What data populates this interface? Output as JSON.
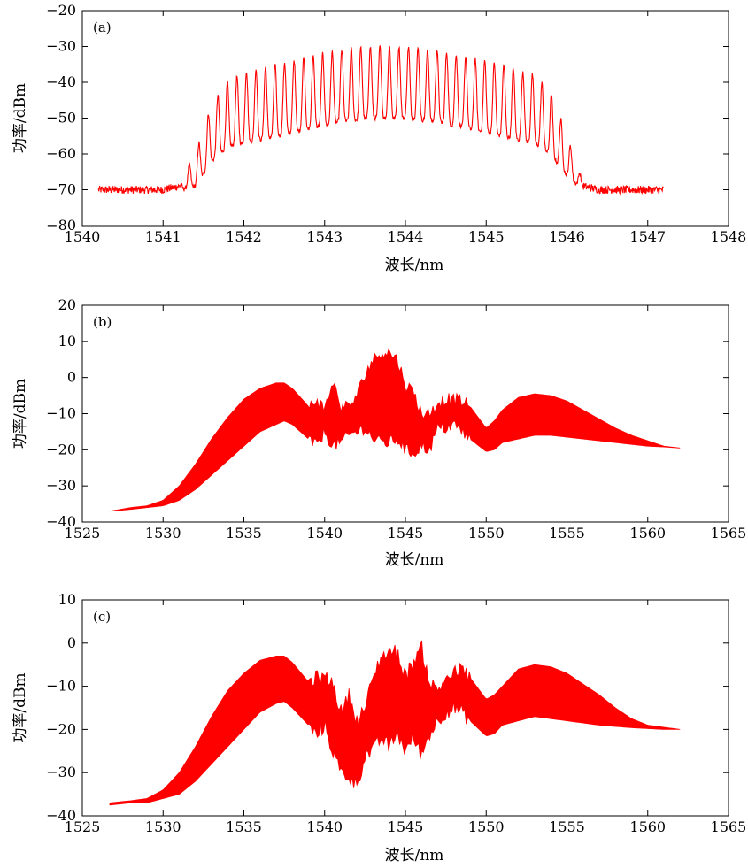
{
  "chart_data": [
    {
      "type": "line",
      "panel_label": "(a)",
      "xlabel": "波长/nm",
      "ylabel": "功率/dBm",
      "xlim": [
        1540,
        1548
      ],
      "ylim": [
        -80,
        -20
      ],
      "xticks": [
        1540,
        1541,
        1542,
        1543,
        1544,
        1545,
        1546,
        1547,
        1548
      ],
      "yticks": [
        -80,
        -70,
        -60,
        -50,
        -40,
        -30,
        -20
      ],
      "ytick_labels": [
        "−80",
        "−70",
        "−60",
        "−50",
        "−40",
        "−30",
        "−20"
      ],
      "grid": false,
      "color": "#ff0000",
      "series": [
        {
          "description_points": "approximate spectrum envelope (x in nm, y in dBm)",
          "x": [
            1540.2,
            1541.0,
            1541.2,
            1541.4,
            1541.6,
            1541.8,
            1542.0,
            1542.4,
            1542.8,
            1543.2,
            1543.6,
            1544.0,
            1544.4,
            1544.8,
            1545.2,
            1545.6,
            1545.8,
            1546.0,
            1546.2,
            1546.4,
            1547.2
          ],
          "upper": [
            -69,
            -69,
            -68,
            -60,
            -46,
            -40,
            -37,
            -35,
            -33,
            -31,
            -30,
            -30,
            -31,
            -33,
            -35,
            -38,
            -43,
            -55,
            -68,
            -69,
            -69
          ],
          "lower": [
            -71,
            -71,
            -70,
            -69,
            -62,
            -58,
            -57,
            -55,
            -53,
            -51,
            -50,
            -50,
            -51,
            -53,
            -55,
            -57,
            -60,
            -66,
            -70,
            -71,
            -71
          ]
        }
      ]
    },
    {
      "type": "area",
      "panel_label": "(b)",
      "xlabel": "波长/nm",
      "ylabel": "功率/dBm",
      "xlim": [
        1525,
        1565
      ],
      "ylim": [
        -40,
        20
      ],
      "xticks": [
        1525,
        1530,
        1535,
        1540,
        1545,
        1550,
        1555,
        1560,
        1565
      ],
      "yticks": [
        -40,
        -30,
        -20,
        -10,
        0,
        10,
        20
      ],
      "ytick_labels": [
        "−40",
        "−30",
        "−20",
        "−10",
        "0",
        "10",
        "20"
      ],
      "grid": false,
      "color": "#ff0000",
      "series": [
        {
          "x": [
            1526.7,
            1528.0,
            1529.0,
            1530.0,
            1531.0,
            1532.0,
            1533.0,
            1534.0,
            1535.0,
            1536.0,
            1537.0,
            1537.5,
            1538.0,
            1539.0,
            1539.5,
            1540.0,
            1540.5,
            1541.0,
            1541.5,
            1542.0,
            1542.5,
            1543.0,
            1543.5,
            1544.0,
            1544.5,
            1545.0,
            1545.5,
            1546.0,
            1546.5,
            1547.0,
            1547.5,
            1548.0,
            1548.5,
            1549.0,
            1550.0,
            1550.5,
            1551.0,
            1552.0,
            1553.0,
            1554.0,
            1555.0,
            1556.0,
            1557.0,
            1558.0,
            1559.0,
            1560.0,
            1561.0,
            1562.0
          ],
          "upper": [
            -37,
            -36,
            -35.5,
            -34,
            -30,
            -24,
            -17,
            -11,
            -6,
            -3,
            -1.5,
            -1.5,
            -3,
            -8,
            -6,
            -9,
            -1,
            -8,
            -8,
            -5,
            1,
            5,
            7,
            7,
            5,
            -2,
            -4,
            -10,
            -10,
            -7,
            -6,
            -6,
            -6.5,
            -8,
            -14,
            -12,
            -9,
            -5.5,
            -4.5,
            -5,
            -6.5,
            -9,
            -11.5,
            -14,
            -16,
            -17.5,
            -19,
            -19.5
          ],
          "lower": [
            -37,
            -36.5,
            -36,
            -35.5,
            -34,
            -31,
            -27,
            -23,
            -19,
            -15,
            -13,
            -12,
            -13,
            -17,
            -19,
            -15,
            -19,
            -18,
            -16,
            -15,
            -14,
            -17,
            -18,
            -18,
            -17,
            -20,
            -21,
            -19,
            -20,
            -14,
            -14,
            -13,
            -15,
            -17,
            -20.5,
            -20,
            -18,
            -17,
            -16,
            -16,
            -16.5,
            -17,
            -17.5,
            -18,
            -18.5,
            -19,
            -19.2,
            -19.5
          ]
        }
      ]
    },
    {
      "type": "area",
      "panel_label": "(c)",
      "xlabel": "波长/nm",
      "ylabel": "功率/dBm",
      "xlim": [
        1525,
        1565
      ],
      "ylim": [
        -40,
        10
      ],
      "xticks": [
        1525,
        1530,
        1535,
        1540,
        1545,
        1550,
        1555,
        1560,
        1565
      ],
      "yticks": [
        -40,
        -30,
        -20,
        -10,
        0,
        10
      ],
      "ytick_labels": [
        "−40",
        "−30",
        "−20",
        "−10",
        "0",
        "10"
      ],
      "grid": false,
      "color": "#ff0000",
      "series": [
        {
          "x": [
            1526.7,
            1528.0,
            1529.0,
            1530.0,
            1531.0,
            1532.0,
            1533.0,
            1534.0,
            1535.0,
            1536.0,
            1537.0,
            1537.5,
            1538.0,
            1539.0,
            1539.5,
            1540.0,
            1540.5,
            1541.0,
            1541.5,
            1542.0,
            1542.5,
            1543.0,
            1543.5,
            1544.0,
            1544.5,
            1545.0,
            1545.5,
            1546.0,
            1546.5,
            1547.0,
            1547.5,
            1548.0,
            1548.5,
            1549.0,
            1550.0,
            1550.5,
            1551.0,
            1552.0,
            1553.0,
            1554.0,
            1555.0,
            1556.0,
            1557.0,
            1558.0,
            1559.0,
            1560.0,
            1561.0,
            1562.0
          ],
          "upper": [
            -37,
            -36.5,
            -36,
            -34,
            -30,
            -24,
            -17,
            -11,
            -7,
            -4,
            -3,
            -3,
            -4.5,
            -9,
            -8,
            -8,
            -9,
            -16,
            -12,
            -18,
            -15,
            -8,
            -3,
            -2,
            -2,
            -8,
            -4,
            -1,
            -9,
            -11,
            -8,
            -7,
            -6,
            -8,
            -13,
            -12,
            -10,
            -6,
            -5,
            -5.5,
            -7,
            -9.5,
            -12,
            -15,
            -17.5,
            -19,
            -19.5,
            -20
          ],
          "lower": [
            -37.5,
            -37,
            -37,
            -36,
            -35,
            -32,
            -28,
            -24,
            -20,
            -16,
            -14,
            -13.5,
            -15,
            -19,
            -21.5,
            -19,
            -25,
            -30,
            -31,
            -33,
            -26,
            -25,
            -22,
            -24,
            -21,
            -25,
            -22,
            -26,
            -21,
            -18,
            -16,
            -15,
            -16,
            -18,
            -21.5,
            -21,
            -19,
            -18,
            -17,
            -17.5,
            -18,
            -18.5,
            -19,
            -19.3,
            -19.6,
            -19.8,
            -20,
            -20
          ]
        }
      ]
    }
  ]
}
